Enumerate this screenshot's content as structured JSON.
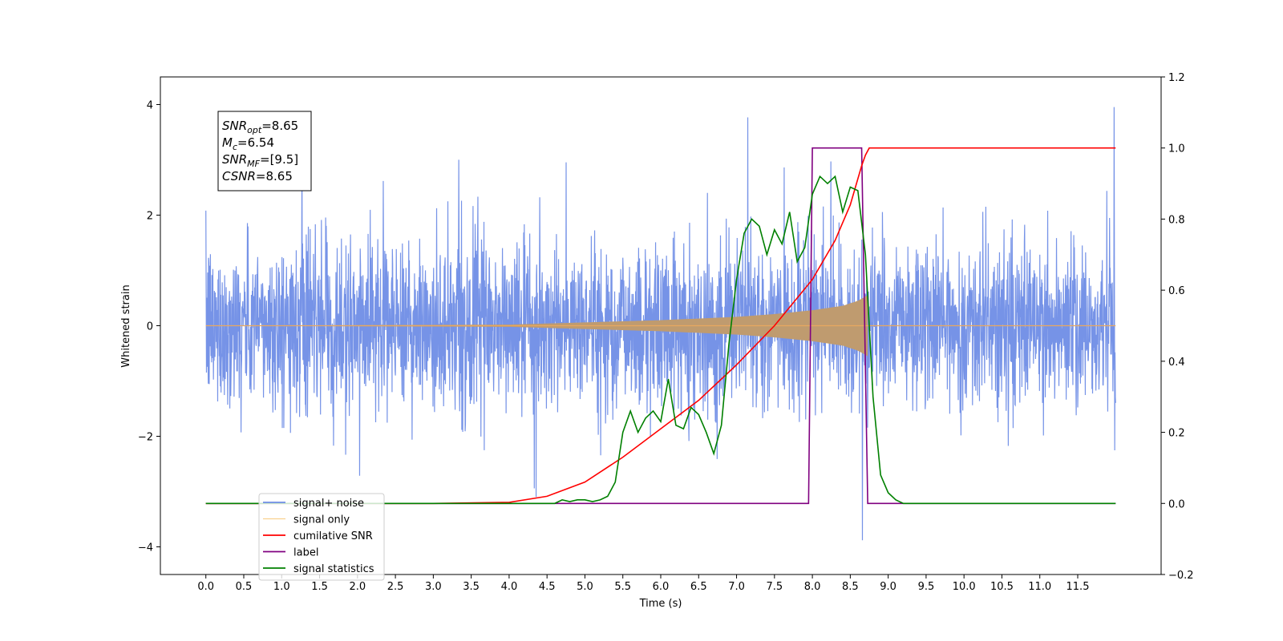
{
  "chart_data": {
    "type": "line",
    "xlabel": "Time (s)",
    "ylabel": "Whitened strain",
    "xlim": [
      -0.6,
      12.6
    ],
    "ylim_left": [
      -4.5,
      4.5
    ],
    "ylim_right": [
      -0.2,
      1.2
    ],
    "x_ticks": [
      "0.0",
      "0.5",
      "1.0",
      "1.5",
      "2.0",
      "2.5",
      "3.0",
      "3.5",
      "4.0",
      "4.5",
      "5.0",
      "5.5",
      "6.0",
      "6.5",
      "7.0",
      "7.5",
      "8.0",
      "8.5",
      "9.0",
      "9.5",
      "10.0",
      "10.5",
      "11.0",
      "11.5"
    ],
    "y_left_ticks": [
      "4",
      "2",
      "0",
      "−2",
      "−4"
    ],
    "y_right_ticks": [
      "1.2",
      "1.0",
      "0.8",
      "0.6",
      "0.4",
      "0.2",
      "0.0",
      "−0.2"
    ],
    "grid": false,
    "legend_position": "lower-left",
    "annotation": {
      "lines": [
        {
          "sym": "SNR",
          "sub": "opt",
          "val": "=8.65"
        },
        {
          "sym": "M",
          "sub": "c",
          "val": "=6.54"
        },
        {
          "sym": "SNR",
          "sub": "MF",
          "val": "=[9.5]"
        },
        {
          "sym": "CSNR",
          "sub": "",
          "val": "=8.65"
        }
      ]
    },
    "series": [
      {
        "name": "signal+ noise",
        "axis": "left",
        "color": "#6f8de6",
        "kind": "noise",
        "x_range": [
          0.0,
          12.0
        ],
        "typical_amplitude": 1.6,
        "peak_amplitude": 4.1
      },
      {
        "name": "signal only",
        "axis": "left",
        "color": "#f5b342",
        "kind": "chirp",
        "x_range": [
          0.0,
          8.73
        ],
        "envelope": [
          [
            0.0,
            0.0
          ],
          [
            4.0,
            0.02
          ],
          [
            5.0,
            0.06
          ],
          [
            6.0,
            0.1
          ],
          [
            7.0,
            0.16
          ],
          [
            7.5,
            0.21
          ],
          [
            8.0,
            0.28
          ],
          [
            8.4,
            0.36
          ],
          [
            8.6,
            0.45
          ],
          [
            8.73,
            0.55
          ]
        ]
      },
      {
        "name": "cumilative SNR",
        "axis": "right",
        "color": "#ff0000",
        "x": [
          0.0,
          3.0,
          4.0,
          4.5,
          5.0,
          5.5,
          6.0,
          6.5,
          7.0,
          7.5,
          8.0,
          8.3,
          8.5,
          8.65,
          8.7,
          8.75,
          12.0
        ],
        "y": [
          0.0,
          0.0,
          0.003,
          0.02,
          0.06,
          0.13,
          0.21,
          0.29,
          0.39,
          0.5,
          0.63,
          0.74,
          0.84,
          0.95,
          0.98,
          1.0,
          1.0
        ]
      },
      {
        "name": "label",
        "axis": "right",
        "color": "#800080",
        "x": [
          0.0,
          7.95,
          8.0,
          8.65,
          8.73,
          12.0
        ],
        "y": [
          0.0,
          0.0,
          1.0,
          1.0,
          0.0,
          0.0
        ]
      },
      {
        "name": "signal statistics",
        "axis": "right",
        "color": "#008000",
        "x": [
          0.0,
          4.6,
          4.7,
          4.8,
          4.9,
          5.0,
          5.1,
          5.2,
          5.3,
          5.4,
          5.5,
          5.6,
          5.7,
          5.8,
          5.9,
          6.0,
          6.1,
          6.2,
          6.3,
          6.4,
          6.5,
          6.6,
          6.7,
          6.8,
          6.9,
          7.0,
          7.1,
          7.2,
          7.3,
          7.4,
          7.5,
          7.6,
          7.7,
          7.8,
          7.9,
          8.0,
          8.1,
          8.2,
          8.3,
          8.4,
          8.5,
          8.6,
          8.7,
          8.8,
          8.9,
          9.0,
          9.1,
          9.2,
          9.4,
          12.0
        ],
        "y": [
          0.0,
          0.0,
          0.01,
          0.005,
          0.01,
          0.01,
          0.005,
          0.01,
          0.02,
          0.06,
          0.2,
          0.26,
          0.2,
          0.24,
          0.26,
          0.23,
          0.35,
          0.22,
          0.21,
          0.27,
          0.25,
          0.2,
          0.14,
          0.22,
          0.45,
          0.63,
          0.76,
          0.8,
          0.78,
          0.7,
          0.77,
          0.73,
          0.82,
          0.68,
          0.72,
          0.87,
          0.92,
          0.9,
          0.92,
          0.82,
          0.89,
          0.88,
          0.7,
          0.3,
          0.08,
          0.03,
          0.01,
          0.0,
          0.0,
          0.0
        ]
      }
    ]
  }
}
